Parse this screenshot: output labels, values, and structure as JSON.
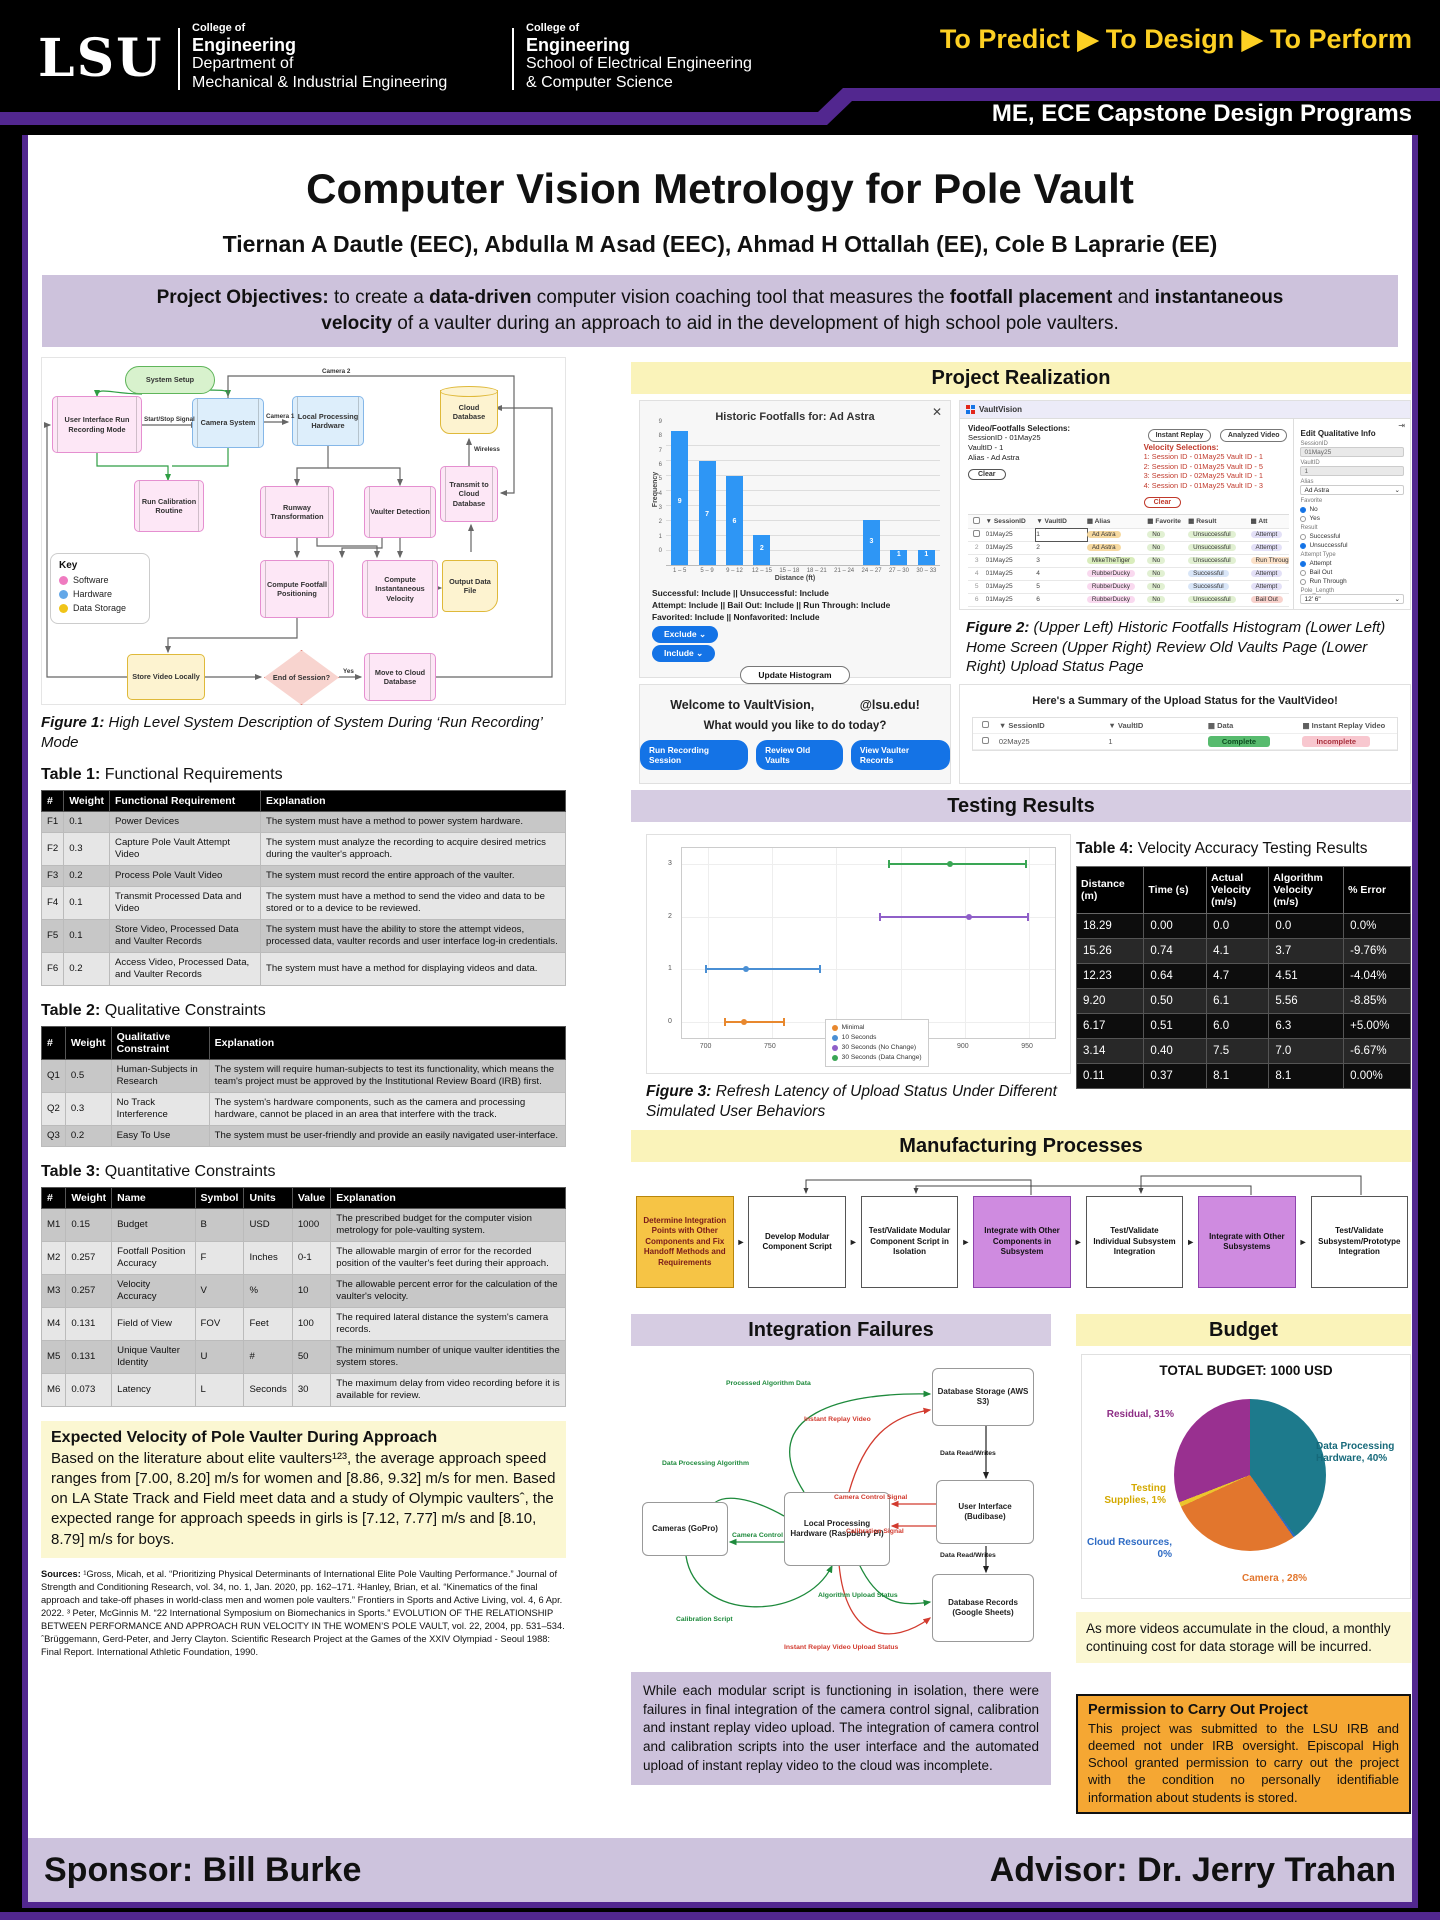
{
  "header": {
    "logo": "LSU",
    "dept1": {
      "l1": "College of",
      "l2": "Engineering",
      "l3": "Department of",
      "l4": "Mechanical & Industrial Engineering"
    },
    "dept2": {
      "l1": "College of",
      "l2": "Engineering",
      "l3": "School of Electrical Engineering",
      "l4": "& Computer Science"
    },
    "motto": "To Predict ▶ To Design ▶ To Perform",
    "programs": "ME, ECE Capstone Design Programs"
  },
  "poster": {
    "title": "Computer Vision Metrology for Pole Vault",
    "authors": "Tiernan A Dautle (EEC), Abdulla M Asad (EEC), Ahmad H Ottallah (EE), Cole B Laprarie (EE)"
  },
  "objectives": {
    "p1": "Project Objectives:",
    "p2": " to create a ",
    "p3": "data-driven",
    "p4": " computer vision coaching tool that measures the ",
    "p5": "footfall placement",
    "p6": " and ",
    "p7": "instantaneous velocity",
    "p8": " of a vaulter during an approach to aid in the development of high school pole vaulters."
  },
  "figure1": {
    "caption_label": "Figure 1:",
    "caption": " High Level System Description of System During ‘Run Recording’ Mode",
    "nodes": {
      "system_setup": "System Setup",
      "ui_run": "User Interface Run Recording Mode",
      "camera_system": "Camera System",
      "local_processing": "Local Processing Hardware",
      "cloud_db": "Cloud Database",
      "run_calibration": "Run Calibration Routine",
      "runway_transform": "Runway Transformation",
      "vaulter_detection": "Vaulter Detection",
      "transmit_cloud": "Transmit to Cloud Database",
      "compute_footfall": "Compute Footfall Positioning",
      "compute_velocity": "Compute Instantaneous Velocity",
      "output_file": "Output Data File",
      "store_video": "Store Video Locally",
      "end_session": "End of Session?",
      "move_cloud": "Move to Cloud Database"
    },
    "labels": {
      "start_stop": "Start/Stop Signal",
      "camera1": "Camera 1",
      "camera2": "Camera 2",
      "wireless": "Wireless",
      "yes": "Yes"
    },
    "key": {
      "title": "Key",
      "items": [
        {
          "label": "Software",
          "color": "#ef7bc0"
        },
        {
          "label": "Hardware",
          "color": "#64a8e8"
        },
        {
          "label": "Data Storage",
          "color": "#f0c419"
        }
      ]
    }
  },
  "tables": {
    "t1": {
      "label": "Table 1:",
      "title": " Functional Requirements",
      "headers": [
        "#",
        "Weight",
        "Functional Requirement",
        "Explanation"
      ],
      "rows": [
        [
          "F1",
          "0.1",
          "Power Devices",
          "The system must have a method to power system hardware."
        ],
        [
          "F2",
          "0.3",
          "Capture Pole Vault Attempt Video",
          "The system must analyze the recording to acquire desired metrics during the vaulter's approach."
        ],
        [
          "F3",
          "0.2",
          "Process Pole Vault Video",
          "The system must record the entire approach of the vaulter."
        ],
        [
          "F4",
          "0.1",
          "Transmit Processed Data and Video",
          "The system must have a method to send the video and data to be stored or to a device to be reviewed."
        ],
        [
          "F5",
          "0.1",
          "Store Video, Processed Data and Vaulter Records",
          "The system must have the ability to store the attempt videos, processed data, vaulter records and user interface log-in credentials."
        ],
        [
          "F6",
          "0.2",
          "Access Video, Processed Data, and Vaulter Records",
          "The system must have a method for displaying videos and data."
        ]
      ]
    },
    "t2": {
      "label": "Table 2:",
      "title": " Qualitative Constraints",
      "headers": [
        "#",
        "Weight",
        "Qualitative Constraint",
        "Explanation"
      ],
      "rows": [
        [
          "Q1",
          "0.5",
          "Human-Subjects in Research",
          "The system will require human-subjects to test its functionality, which means the team's project must be approved by the Institutional Review Board (IRB) first."
        ],
        [
          "Q2",
          "0.3",
          "No Track Interference",
          "The system's hardware components, such as the camera and processing hardware, cannot be placed in an area that interfere with the track."
        ],
        [
          "Q3",
          "0.2",
          "Easy To Use",
          "The system must be user-friendly and provide an easily navigated user-interface."
        ]
      ]
    },
    "t3": {
      "label": "Table 3:",
      "title": " Quantitative Constraints",
      "headers": [
        "#",
        "Weight",
        "Name",
        "Symbol",
        "Units",
        "Value",
        "Explanation"
      ],
      "rows": [
        [
          "M1",
          "0.15",
          "Budget",
          "B",
          "USD",
          "1000",
          "The prescribed budget for the computer vision metrology for pole-vaulting system."
        ],
        [
          "M2",
          "0.257",
          "Footfall Position Accuracy",
          "F",
          "Inches",
          "0-1",
          "The allowable margin of error for the recorded position of the vaulter's feet during their approach."
        ],
        [
          "M3",
          "0.257",
          "Velocity Accuracy",
          "V",
          "%",
          "10",
          "The allowable percent error for the calculation of the vaulter's velocity."
        ],
        [
          "M4",
          "0.131",
          "Field of View",
          "FOV",
          "Feet",
          "100",
          "The required lateral distance the system's camera records."
        ],
        [
          "M5",
          "0.131",
          "Unique Vaulter Identity",
          "U",
          "#",
          "50",
          "The minimum number of unique vaulter identities the system stores."
        ],
        [
          "M6",
          "0.073",
          "Latency",
          "L",
          "Seconds",
          "30",
          "The maximum delay from video recording before it is available for review."
        ]
      ]
    }
  },
  "expected_velocity": {
    "title": "Expected Velocity of Pole Vaulter During Approach",
    "body": "Based on the literature about elite vaulters¹²³, the average approach speed ranges from [7.00, 8.20] m/s for women and [8.86, 9.32] m/s for men. Based on LA State Track and Field meet data and a study of Olympic vaultersˆ, the expected range for approach speeds in girls is [7.12, 7.77] m/s and [8.10, 8.79] m/s for boys."
  },
  "sources": {
    "label": "Sources:",
    "text": " ¹Gross, Micah, et al. “Prioritizing Physical Determinants of International Elite Pole Vaulting Performance.” Journal of Strength and Conditioning Research, vol. 34, no. 1, Jan. 2020, pp. 162–171. ²Hanley, Brian, et al. “Kinematics of the final approach and take-off phases in world-class men and women pole vaulters.” Frontiers in Sports and Active Living, vol. 4, 6 Apr. 2022. ³ Peter, McGinnis M. “22 International Symposium on Biomechanics in Sports.” EVOLUTION OF THE RELATIONSHIP BETWEEN PERFORMANCE AND APPROACH RUN VELOCITY IN THE WOMEN’S POLE VAULT, vol. 22, 2004, pp. 531–534. ˆBrüggemann, Gerd-Peter, and Jerry Clayton. Scientific Research Project at the Games of the XXIV Olympiad - Seoul 1988: Final Report. International Athletic Foundation, 1990."
  },
  "realization": {
    "band": "Project Realization",
    "figure2_label": "Figure 2:",
    "figure2_caption": " (Upper Left) Historic Footfalls Histogram (Lower Left) Home Screen (Upper Right) Review Old Vaults Page (Lower Right) Upload Status Page",
    "histogram_filters": [
      "Successful: Include || Unsuccessful: Include",
      "Attempt: Include || Bail Out: Include || Run Through: Include",
      "Favorited: Include || Nonfavorited: Include"
    ],
    "exclude_btn": "Exclude  ⌄",
    "include_btn": "Include  ⌄",
    "update_btn": "Update Histogram",
    "close": "✕",
    "welcome": {
      "greeting_pre": "Welcome to VaultVision,",
      "greeting_post": "@lsu.edu!",
      "question": "What would you like to do today?",
      "buttons": [
        "Run Recording Session",
        "Review Old Vaults",
        "View Vaulter Records"
      ]
    },
    "review": {
      "app": "VaultVision",
      "selections_title": "Video/Footfalls Selections:",
      "selections": [
        "SessionID - 01May25",
        "VaultID - 1",
        "Alias - Ad Astra"
      ],
      "velocity_title": "Velocity Selections:",
      "velocity": [
        "1: Session ID - 01May25 Vault ID - 1",
        "2: Session ID - 01May25 Vault ID - 5",
        "3: Session ID - 02May25 Vault ID - 1",
        "4: Session ID - 01May25 Vault ID - 3"
      ],
      "clear": "Clear",
      "pills": [
        "Instant Replay",
        "Analyzed Video"
      ],
      "headers": [
        "SessionID",
        "VaultID",
        "Alias",
        "Favorite",
        "Result",
        "Att"
      ],
      "rows": [
        {
          "session": "01May25",
          "vault": "1",
          "alias": "Ad Astra",
          "favorite": "No",
          "result": "Unsuccessful",
          "attempt": "Attempt"
        },
        {
          "session": "01May25",
          "vault": "2",
          "alias": "Ad Astra",
          "favorite": "No",
          "result": "Unsuccessful",
          "attempt": "Attempt"
        },
        {
          "session": "01May25",
          "vault": "3",
          "alias": "MikeTheTiger",
          "favorite": "No",
          "result": "Unsuccessful",
          "attempt": "Run Through"
        },
        {
          "session": "01May25",
          "vault": "4",
          "alias": "RubberDucky",
          "favorite": "No",
          "result": "Successful",
          "attempt": "Attempt"
        },
        {
          "session": "01May25",
          "vault": "5",
          "alias": "RubberDucky",
          "favorite": "No",
          "result": "Successful",
          "attempt": "Attempt"
        },
        {
          "session": "01May25",
          "vault": "6",
          "alias": "RubberDucky",
          "favorite": "No",
          "result": "Unsuccessful",
          "attempt": "Bail Out"
        },
        {
          "session": "01May25",
          "vault": "7",
          "alias": "Per Aspera",
          "favorite": "No",
          "result": "Unsuccessful",
          "attempt": "Attempt"
        },
        {
          "session": "01May25",
          "vault": "8",
          "alias": "Per Aspera",
          "favorite": "No",
          "result": "Unsuccessful",
          "attempt": "Attempt"
        },
        {
          "session": "02May25",
          "vault": "1",
          "alias": "RubberDucky",
          "favorite": "No",
          "result": "Successful",
          "attempt": "Attempt"
        }
      ],
      "colors": {
        "alias": {
          "Ad Astra": "#f6d9a0",
          "MikeTheTiger": "#d9edbc",
          "RubberDucky": "#f9d9ef",
          "Per Aspera": "#c8ece6"
        },
        "favorite": "#e1f0d2",
        "result": {
          "Successful": "#d9e6f8",
          "Unsuccessful": "#e1f0d2"
        },
        "attempt": {
          "Attempt": "#e3e0f7",
          "Bail Out": "#f8d2cc",
          "Run Through": "#fbe1c8"
        }
      }
    },
    "edit_panel": {
      "title": "Edit Qualitative Info",
      "collapse_icon": "⇥",
      "session_label": "SessionID",
      "session_value": "01May25",
      "vault_label": "VaultID",
      "vault_value": "1",
      "alias_label": "Alias",
      "alias_value": "Ad Astra",
      "favorite_label": "Favorite",
      "favorite": {
        "options": [
          "No",
          "Yes"
        ],
        "selected": "No"
      },
      "result_label": "Result",
      "result": {
        "options": [
          "Successful",
          "Unsuccessful"
        ],
        "selected": "Unsuccessful"
      },
      "attempt_label": "Attempt Type",
      "attempt": {
        "options": [
          "Attempt",
          "Bail Out",
          "Run Through"
        ],
        "selected": "Attempt"
      },
      "pole_label": "Pole_Length",
      "pole_value": "12' 6\""
    },
    "upload": {
      "title": "Here's a Summary of the Upload Status for the VaultVideo!",
      "headers": [
        "SessionID",
        "VaultID",
        "Data",
        "Instant Replay Video"
      ],
      "row": {
        "session": "02May25",
        "vault": "1",
        "data": "Complete",
        "replay": "Incomplete"
      }
    }
  },
  "testing": {
    "band": "Testing Results",
    "figure3_label": "Figure 3:",
    "figure3_caption": " Refresh Latency of Upload Status Under Different Simulated User Behaviors",
    "table4": {
      "label": "Table 4:",
      "title": " Velocity Accuracy Testing Results",
      "headers": [
        "Distance\n(m)",
        "Time (s)",
        "Actual\nVelocity\n(m/s)",
        "Algorithm\nVelocity\n(m/s)",
        "% Error"
      ],
      "rows": [
        [
          "18.29",
          "0.00",
          "0.0",
          "0.0",
          "0.0%"
        ],
        [
          "15.26",
          "0.74",
          "4.1",
          "3.7",
          "-9.76%"
        ],
        [
          "12.23",
          "0.64",
          "4.7",
          "4.51",
          "-4.04%"
        ],
        [
          "9.20",
          "0.50",
          "6.1",
          "5.56",
          "-8.85%"
        ],
        [
          "6.17",
          "0.51",
          "6.0",
          "6.3",
          "+5.00%"
        ],
        [
          "3.14",
          "0.40",
          "7.5",
          "7.0",
          "-6.67%"
        ],
        [
          "0.11",
          "0.37",
          "8.1",
          "8.1",
          "0.00%"
        ]
      ]
    }
  },
  "manufacturing": {
    "band": "Manufacturing Processes",
    "steps": [
      {
        "label": "Determine Integration Points with Other Components and Fix Handoff Methods and Requirements",
        "style": "yellow"
      },
      {
        "label": "Develop Modular Component Script",
        "style": "white"
      },
      {
        "label": "Test/Validate Modular Component Script in Isolation",
        "style": "white"
      },
      {
        "label": "Integrate with Other Components in Subsystem",
        "style": "purple"
      },
      {
        "label": "Test/Validate Individual Subsystem Integration",
        "style": "white"
      },
      {
        "label": "Integrate with Other Subsystems",
        "style": "purple"
      },
      {
        "label": "Test/Validate Subsystem/Prototype Integration",
        "style": "white"
      }
    ]
  },
  "integration": {
    "band": "Integration Failures",
    "nodes": [
      "Cameras (GoPro)",
      "Local Processing Hardware (Raspberry Pi)",
      "Database Storage (AWS S3)",
      "User Interface (Budibase)",
      "Database Records (Google Sheets)"
    ],
    "labels": [
      {
        "text": "Processed Algorithm Data",
        "color": "#1e8a3c"
      },
      {
        "text": "Instant Replay Video",
        "color": "#d23b2f"
      },
      {
        "text": "Data Processing Algorithm",
        "color": "#1e8a3c"
      },
      {
        "text": "Camera Control",
        "color": "#1e8a3c"
      },
      {
        "text": "Camera Control Signal",
        "color": "#d23b2f"
      },
      {
        "text": "Calibration Signal",
        "color": "#d23b2f"
      },
      {
        "text": "Calibration Script",
        "color": "#1e8a3c"
      },
      {
        "text": "Data Read/Writes",
        "color": "#222222"
      },
      {
        "text": "Algorithm Upload Status",
        "color": "#1e8a3c"
      },
      {
        "text": "Instant Replay Video Upload Status",
        "color": "#d23b2f"
      },
      {
        "text": "Data Read/Writes",
        "color": "#222222"
      }
    ],
    "paragraph": "While each modular script is functioning in isolation, there were failures in final integration of the camera control signal, calibration and instant replay video upload. The integration of camera control and calibration scripts into the user interface and the automated upload of instant replay video to the cloud was incomplete."
  },
  "budget": {
    "band": "Budget",
    "note": "As more videos accumulate in the cloud, a monthly continuing cost for data storage will be incurred."
  },
  "permission": {
    "title": "Permission to Carry Out Project",
    "body": "This project was submitted to the LSU IRB and deemed not under IRB oversight. Episcopal High School granted permission to carry out the project with the condition no personally identifiable information about students is stored."
  },
  "footer": {
    "sponsor": "Sponsor: Bill Burke",
    "advisor": "Advisor: Dr. Jerry Trahan"
  },
  "chart_data": [
    {
      "type": "bar",
      "title": "Historic Footfalls for: Ad Astra",
      "categories": [
        "1 – 5",
        "5 – 9",
        "9 – 12",
        "12 – 15",
        "15 – 18",
        "18 – 21",
        "21 – 24",
        "24 – 27",
        "27 – 30",
        "30 – 33"
      ],
      "values": [
        9,
        7,
        6,
        2,
        0,
        0,
        0,
        3,
        1,
        1
      ],
      "xlabel": "Distance (ft)",
      "ylabel": "Frequency",
      "ylim": [
        0,
        9
      ],
      "bar_color": "#2e96f5",
      "grid": true
    },
    {
      "type": "scatter",
      "title": "Refresh Latency of Upload Status",
      "xlabel": "Time (ms)",
      "xlim": [
        680,
        970
      ],
      "ylim": [
        -0.3,
        3.3
      ],
      "xticks": [
        700,
        750,
        800,
        850,
        900,
        950
      ],
      "yticks": [
        0,
        1,
        2,
        3
      ],
      "legend_position": "lower center-right",
      "series": [
        {
          "name": "Minimal",
          "color": "#e8882e",
          "y": 0,
          "x_low": 713,
          "x_mid": 728,
          "x_high": 760
        },
        {
          "name": "10 Seconds",
          "color": "#4a8fd4",
          "y": 1,
          "x_low": 698,
          "x_mid": 730,
          "x_high": 788
        },
        {
          "name": "30 Seconds (No Change)",
          "color": "#8f5fc8",
          "y": 2,
          "x_low": 833,
          "x_mid": 903,
          "x_high": 950
        },
        {
          "name": "30 Seconds (Data Change)",
          "color": "#3aa655",
          "y": 3,
          "x_low": 840,
          "x_mid": 888,
          "x_high": 948
        }
      ]
    },
    {
      "type": "pie",
      "title": "TOTAL BUDGET: 1000 USD",
      "slices": [
        {
          "label": "Data Processing Hardware",
          "display": "Data Processing Hardware, 40%",
          "pct": 40,
          "color": "#1d7a8c",
          "label_color": "#16697a"
        },
        {
          "label": "Cloud Resources",
          "display": "Cloud Resources, 0%",
          "pct": 0,
          "color": "#2e6bc4",
          "label_color": "#2e6bc4"
        },
        {
          "label": "Camera",
          "display": "Camera , 28%",
          "pct": 28,
          "color": "#e2762d",
          "label_color": "#e2762d"
        },
        {
          "label": "Testing Supplies",
          "display": "Testing Supplies, 1%",
          "pct": 1,
          "color": "#ecc52e",
          "label_color": "#d4a900"
        },
        {
          "label": "Residual",
          "display": "Residual, 31%",
          "pct": 31,
          "color": "#993090",
          "label_color": "#8d2d85"
        }
      ]
    }
  ]
}
